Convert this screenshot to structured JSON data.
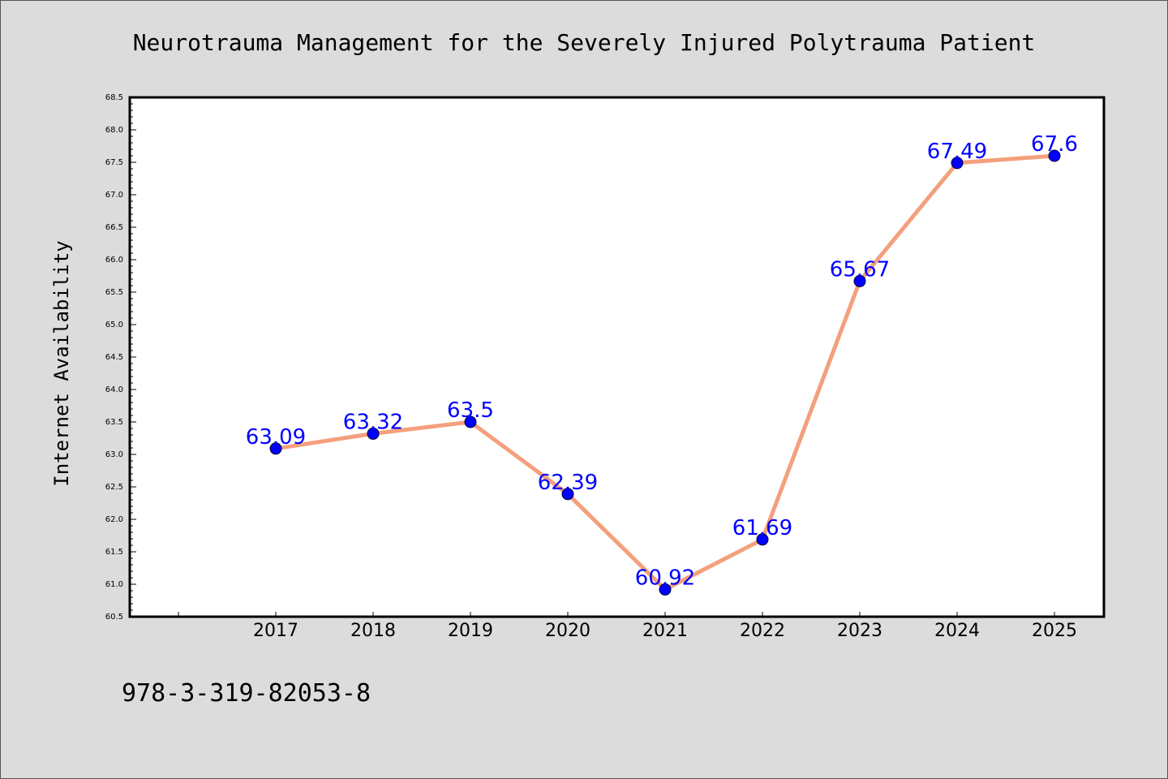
{
  "chart_data": {
    "type": "line",
    "title": "Neurotrauma Management for the Severely Injured Polytrauma Patient",
    "xlabel": "",
    "ylabel": "Internet Availability",
    "categories": [
      "2017",
      "2018",
      "2019",
      "2020",
      "2021",
      "2022",
      "2023",
      "2024",
      "2025"
    ],
    "values": [
      63.09,
      63.32,
      63.5,
      62.39,
      60.92,
      61.69,
      65.67,
      67.49,
      67.6
    ],
    "data_labels": [
      "63.09",
      "63.32",
      "63.5",
      "62.39",
      "60.92",
      "61.69",
      "65.67",
      "67.49",
      "67.6"
    ],
    "ylim": [
      60.5,
      68.5
    ],
    "yticks": [
      "60.5",
      "61.0",
      "61.5",
      "62.0",
      "62.5",
      "63.0",
      "63.5",
      "64.0",
      "64.5",
      "65.0",
      "65.5",
      "66.0",
      "66.5",
      "67.0",
      "67.5",
      "68.0",
      "68.5"
    ],
    "grid": false,
    "legend": "none",
    "line_color": "#f4a07c",
    "marker_color": "#0000ff",
    "label_color": "#0000ff",
    "footnote": "978-3-319-82053-8"
  }
}
